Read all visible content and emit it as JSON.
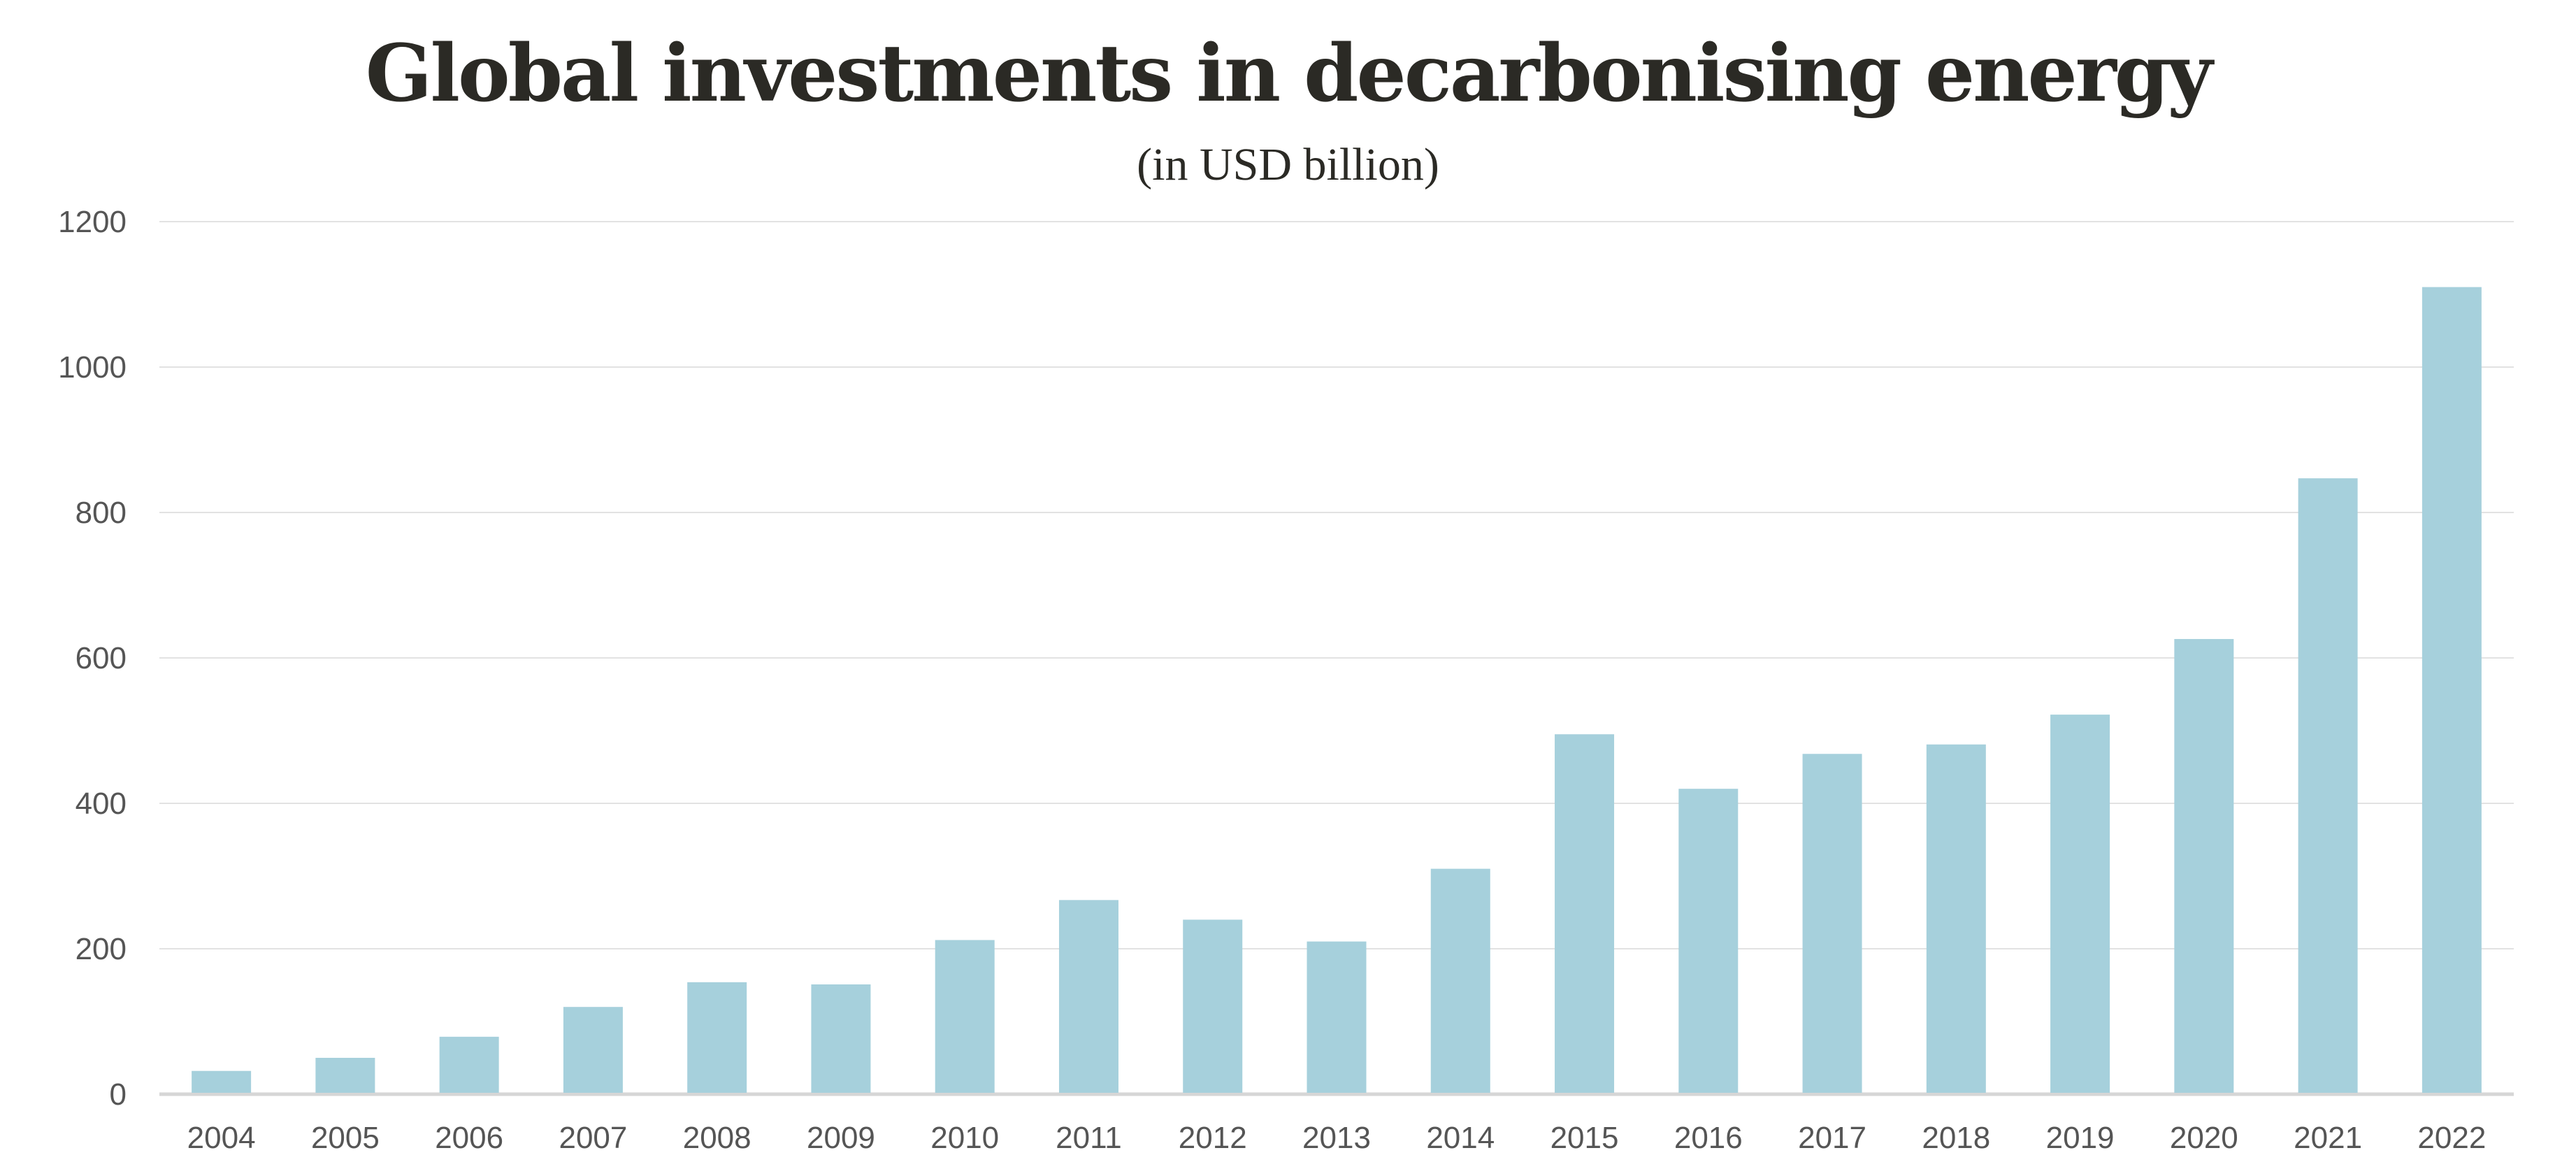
{
  "chart_data": {
    "type": "bar",
    "title": "Global investments in decarbonising energy",
    "subtitle": "(in USD billion)",
    "xlabel": "",
    "ylabel": "",
    "categories": [
      "2004",
      "2005",
      "2006",
      "2007",
      "2008",
      "2009",
      "2010",
      "2011",
      "2012",
      "2013",
      "2014",
      "2015",
      "2016",
      "2017",
      "2018",
      "2019",
      "2020",
      "2021",
      "2022"
    ],
    "values": [
      32,
      50,
      79,
      120,
      154,
      151,
      212,
      267,
      240,
      210,
      310,
      495,
      420,
      468,
      481,
      522,
      626,
      847,
      1110
    ],
    "ylim": [
      0,
      1200
    ],
    "yticks": [
      0,
      200,
      400,
      600,
      800,
      1000,
      1200
    ],
    "grid": true,
    "legend": "none",
    "colors": {
      "bar": "#a6d0dc",
      "grid": "#e2e2e2",
      "axis": "#d6d6d6",
      "text": "#555555",
      "title": "#2b2a25"
    }
  }
}
